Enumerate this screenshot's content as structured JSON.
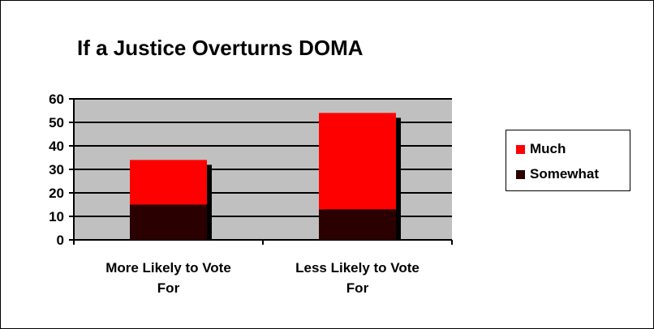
{
  "chart_data": {
    "type": "bar",
    "stacked": true,
    "title": "If a Justice Overturns DOMA",
    "categories": [
      "More Likely to Vote For",
      "Less Likely to Vote For"
    ],
    "category_lines": [
      [
        "More Likely to Vote",
        "For"
      ],
      [
        "Less Likely to Vote",
        "For"
      ]
    ],
    "series": [
      {
        "name": "Somewhat",
        "values": [
          15,
          13
        ],
        "color": "#2a0000"
      },
      {
        "name": "Much",
        "values": [
          19,
          41
        ],
        "color": "#ff0000"
      }
    ],
    "ylim": [
      0,
      60
    ],
    "yticks": [
      0,
      10,
      20,
      30,
      40,
      50,
      60
    ],
    "grid": true,
    "plot_background": "#c0c0c0",
    "legend_position": "right",
    "legend_order": [
      "Much",
      "Somewhat"
    ]
  }
}
